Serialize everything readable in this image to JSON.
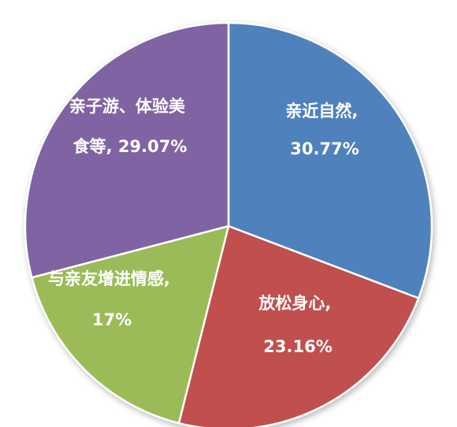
{
  "chart_data": {
    "type": "pie",
    "title": "",
    "slices": [
      {
        "label": "亲近自然,",
        "value_text": "30.77%",
        "value": 30.77,
        "color": "#4F81BD"
      },
      {
        "label": "放松身心,",
        "value_text": "23.16%",
        "value": 23.16,
        "color": "#C0504D"
      },
      {
        "label": "与亲友增进情感,",
        "value_text": "17%",
        "value": 17,
        "color": "#9BBB59"
      },
      {
        "label": "亲子游、体验美食等,",
        "value_text": "29.07%",
        "value": 29.07,
        "color": "#8064A2"
      }
    ],
    "slice_text": [
      {
        "line1": "亲近自然,",
        "line2": "30.77%"
      },
      {
        "line1": "放松身心,",
        "line2": "23.16%"
      },
      {
        "line1": "与亲友增进情感,",
        "line2": "17%"
      },
      {
        "line1": "亲子游、体验美",
        "line2": "食等, 29.07%"
      }
    ]
  }
}
